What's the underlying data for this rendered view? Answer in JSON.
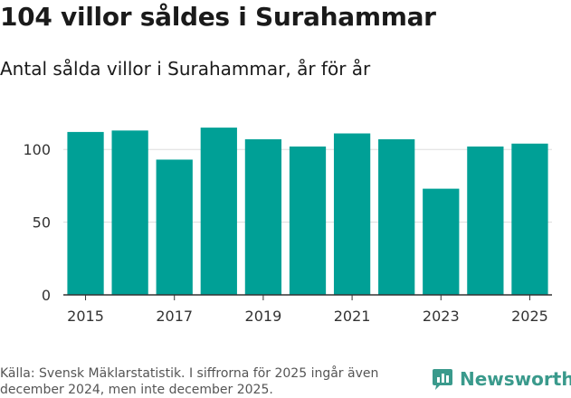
{
  "header": {
    "title": "104 villor såldes i Surahammar",
    "subtitle": "Antal sålda villor i Surahammar, år för år"
  },
  "footer": {
    "source": "Källa: Svensk Mäklarstatistik. I siffrorna för 2025 ingår även december 2024, men inte december 2025.",
    "brand": "Newsworthy"
  },
  "colors": {
    "bar": "#00a096",
    "brand": "#3a9a8c",
    "grid": "#dddddd",
    "axis": "#333333"
  },
  "chart_data": {
    "type": "bar",
    "title": "Antal sålda villor i Surahammar, år för år",
    "xlabel": "",
    "ylabel": "",
    "categories": [
      "2015",
      "2016",
      "2017",
      "2018",
      "2019",
      "2020",
      "2021",
      "2022",
      "2023",
      "2024",
      "2025"
    ],
    "values": [
      112,
      113,
      93,
      115,
      107,
      102,
      111,
      107,
      73,
      102,
      104
    ],
    "ylim": [
      0,
      125
    ],
    "yticks": [
      0,
      50,
      100
    ],
    "xtick_labels": [
      "2015",
      "2017",
      "2019",
      "2021",
      "2023",
      "2025"
    ],
    "grid": true
  }
}
